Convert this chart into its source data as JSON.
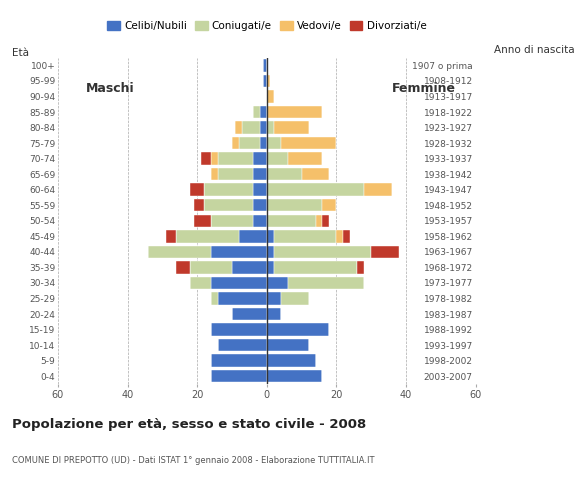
{
  "age_groups": [
    "100+",
    "95-99",
    "90-94",
    "85-89",
    "80-84",
    "75-79",
    "70-74",
    "65-69",
    "60-64",
    "55-59",
    "50-54",
    "45-49",
    "40-44",
    "35-39",
    "30-34",
    "25-29",
    "20-24",
    "15-19",
    "10-14",
    "5-9",
    "0-4"
  ],
  "birth_years": [
    "1907 o prima",
    "1908-1912",
    "1913-1917",
    "1918-1922",
    "1923-1927",
    "1928-1932",
    "1933-1937",
    "1938-1942",
    "1943-1947",
    "1948-1952",
    "1953-1957",
    "1958-1962",
    "1963-1967",
    "1968-1972",
    "1973-1977",
    "1978-1982",
    "1983-1987",
    "1988-1992",
    "1993-1997",
    "1998-2002",
    "2003-2007"
  ],
  "males": {
    "celibe": [
      1,
      1,
      0,
      2,
      2,
      2,
      4,
      4,
      4,
      4,
      4,
      8,
      16,
      10,
      16,
      14,
      10,
      16,
      14,
      16,
      16
    ],
    "coniugato": [
      0,
      0,
      0,
      2,
      5,
      6,
      10,
      10,
      14,
      14,
      12,
      18,
      18,
      12,
      6,
      2,
      0,
      0,
      0,
      0,
      0
    ],
    "vedovo": [
      0,
      0,
      0,
      0,
      2,
      2,
      2,
      2,
      0,
      0,
      0,
      0,
      0,
      0,
      0,
      0,
      0,
      0,
      0,
      0,
      0
    ],
    "divorziato": [
      0,
      0,
      0,
      0,
      0,
      0,
      3,
      0,
      4,
      3,
      5,
      3,
      0,
      4,
      0,
      0,
      0,
      0,
      0,
      0,
      0
    ]
  },
  "females": {
    "nubile": [
      0,
      0,
      0,
      0,
      0,
      0,
      0,
      0,
      0,
      0,
      0,
      2,
      2,
      2,
      6,
      4,
      4,
      18,
      12,
      14,
      16
    ],
    "coniugata": [
      0,
      0,
      0,
      0,
      2,
      4,
      6,
      10,
      28,
      16,
      14,
      18,
      28,
      24,
      22,
      8,
      0,
      0,
      0,
      0,
      0
    ],
    "vedova": [
      0,
      1,
      2,
      16,
      10,
      16,
      10,
      8,
      8,
      4,
      2,
      2,
      0,
      0,
      0,
      0,
      0,
      0,
      0,
      0,
      0
    ],
    "divorziata": [
      0,
      0,
      0,
      0,
      0,
      0,
      0,
      0,
      0,
      0,
      2,
      2,
      8,
      2,
      0,
      0,
      0,
      0,
      0,
      0,
      0
    ]
  },
  "colors": {
    "celibe": "#4472c4",
    "coniugato": "#c5d5a0",
    "vedovo": "#f5c06a",
    "divorziato": "#c0392b"
  },
  "title": "Popolazione per età, sesso e stato civile - 2008",
  "subtitle": "COMUNE DI PREPOTTO (UD) - Dati ISTAT 1° gennaio 2008 - Elaborazione TUTTITALIA.IT",
  "xlabel_left": "Maschi",
  "xlabel_right": "Femmine",
  "ylabel_left": "Età",
  "ylabel_right": "Anno di nascita",
  "xlim": 60,
  "legend_labels": [
    "Celibi/Nubili",
    "Coniugati/e",
    "Vedovi/e",
    "Divorziati/e"
  ],
  "background_color": "#ffffff"
}
